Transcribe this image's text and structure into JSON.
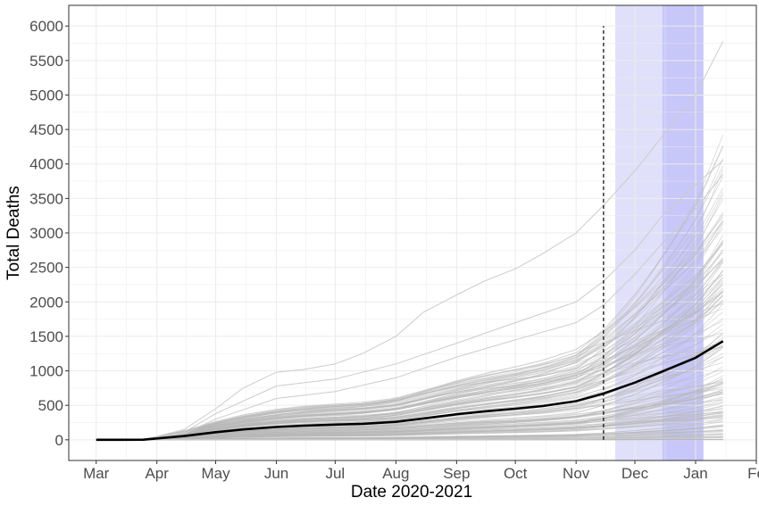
{
  "chart_data": {
    "type": "line",
    "title": "",
    "xlabel": "Date  2020-2021",
    "ylabel": "Total Deaths",
    "x_ticks": [
      {
        "label": "Mar",
        "date": "2020-03-01"
      },
      {
        "label": "Apr",
        "date": "2020-04-01"
      },
      {
        "label": "May",
        "date": "2020-05-01"
      },
      {
        "label": "Jun",
        "date": "2020-06-01"
      },
      {
        "label": "Jul",
        "date": "2020-07-01"
      },
      {
        "label": "Aug",
        "date": "2020-08-01"
      },
      {
        "label": "Sep",
        "date": "2020-09-01"
      },
      {
        "label": "Oct",
        "date": "2020-10-01"
      },
      {
        "label": "Nov",
        "date": "2020-11-01"
      },
      {
        "label": "Dec",
        "date": "2020-12-01"
      },
      {
        "label": "Jan",
        "date": "2021-01-01"
      },
      {
        "label": "Fe",
        "date": "2021-02-01"
      }
    ],
    "xlim": [
      "2020-02-16",
      "2021-02-01"
    ],
    "ylim": [
      -300,
      6300
    ],
    "y_ticks": [
      0,
      500,
      1000,
      1500,
      2000,
      2500,
      3000,
      3500,
      4000,
      4500,
      5000,
      5500,
      6000
    ],
    "grid": true,
    "grid_color": "#ebebeb",
    "panel_border_color": "#333333",
    "vline": {
      "date": "2020-11-15",
      "y_max": 6000,
      "style": "dashed",
      "color": "#000000"
    },
    "shaded_regions": [
      {
        "start": "2020-11-21",
        "end": "2020-12-15",
        "color": "#e0e0fb"
      },
      {
        "start": "2020-12-15",
        "end": "2021-01-05",
        "color": "#c7c7f9"
      }
    ],
    "series": [
      {
        "role": "mean",
        "color": "#000000",
        "x": [
          "2020-03-01",
          "2020-03-15",
          "2020-03-25",
          "2020-04-01",
          "2020-04-15",
          "2020-05-01",
          "2020-05-15",
          "2020-06-01",
          "2020-06-15",
          "2020-07-01",
          "2020-07-15",
          "2020-08-01",
          "2020-08-15",
          "2020-09-01",
          "2020-09-15",
          "2020-10-01",
          "2020-10-15",
          "2020-11-01",
          "2020-11-15",
          "2020-12-01",
          "2020-12-15",
          "2021-01-01",
          "2021-01-15"
        ],
        "y": [
          0,
          0,
          2,
          20,
          55,
          110,
          150,
          185,
          205,
          220,
          232,
          260,
          310,
          370,
          410,
          450,
          490,
          560,
          670,
          830,
          990,
          1190,
          1430
        ]
      },
      {
        "role": "simulation-max",
        "color": "#cccccc",
        "x": [
          "2020-03-01",
          "2020-03-25",
          "2020-04-15",
          "2020-05-01",
          "2020-05-15",
          "2020-06-01",
          "2020-06-15",
          "2020-07-01",
          "2020-07-15",
          "2020-08-01",
          "2020-08-15",
          "2020-09-01",
          "2020-09-15",
          "2020-10-01",
          "2020-10-15",
          "2020-11-01",
          "2020-11-15",
          "2020-12-01",
          "2020-12-15",
          "2021-01-01",
          "2021-01-15"
        ],
        "y": [
          0,
          0,
          150,
          450,
          750,
          980,
          1020,
          1100,
          1250,
          1500,
          1850,
          2100,
          2300,
          2480,
          2700,
          3000,
          3400,
          3900,
          4400,
          5000,
          5780
        ]
      },
      {
        "role": "simulation-high",
        "color": "#cccccc",
        "x": [
          "2020-03-01",
          "2020-03-25",
          "2020-04-15",
          "2020-05-01",
          "2020-06-01",
          "2020-07-01",
          "2020-08-01",
          "2020-09-01",
          "2020-10-01",
          "2020-11-01",
          "2020-11-15",
          "2020-12-01",
          "2020-12-15",
          "2021-01-01",
          "2021-01-15"
        ],
        "y": [
          0,
          0,
          110,
          380,
          780,
          880,
          1100,
          1400,
          1700,
          2000,
          2300,
          2750,
          3250,
          3700,
          4050
        ]
      },
      {
        "role": "simulation-high",
        "color": "#cccccc",
        "x": [
          "2020-03-01",
          "2020-03-25",
          "2020-04-15",
          "2020-05-01",
          "2020-06-01",
          "2020-07-01",
          "2020-08-01",
          "2020-09-01",
          "2020-10-01",
          "2020-11-01",
          "2020-11-15",
          "2020-12-01",
          "2020-12-15",
          "2021-01-01",
          "2021-01-15"
        ],
        "y": [
          0,
          0,
          90,
          300,
          600,
          700,
          900,
          1200,
          1450,
          1700,
          1950,
          2400,
          2850,
          3350,
          3850
        ]
      },
      {
        "role": "simulation-min",
        "color": "#cccccc",
        "x": [
          "2020-03-01",
          "2020-07-01",
          "2020-11-01",
          "2021-01-15"
        ],
        "y": [
          0,
          0,
          10,
          30
        ]
      }
    ]
  }
}
